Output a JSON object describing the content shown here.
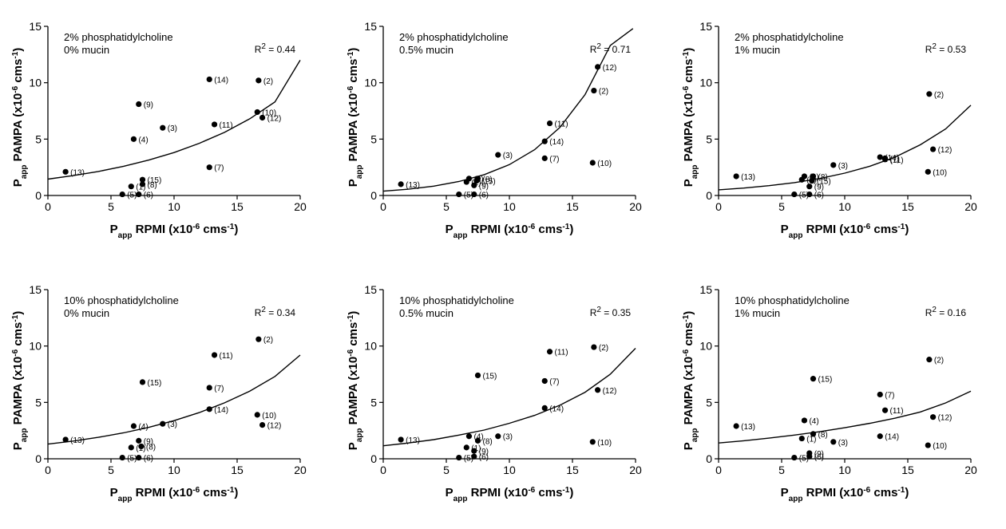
{
  "x_axis_label": {
    "main": "P",
    "sub": "app",
    "rest": " RPMI (x10",
    "exp": "-6",
    "unit": " cms",
    "unit_exp": "-1",
    "close": ")"
  },
  "y_axis_label": {
    "main": "P",
    "sub": "app",
    "rest": " PAMPA (x10",
    "exp": "-6",
    "unit": " cms",
    "unit_exp": "-1",
    "close": ")"
  },
  "r2_prefix": "R",
  "r2_exp": "2",
  "chart_data": [
    {
      "type": "scatter",
      "annotation_lines": [
        "2% phosphatidylcholine",
        "0% mucin"
      ],
      "r2_value": " = 0.44",
      "xlim": [
        0,
        20
      ],
      "ylim": [
        0,
        15
      ],
      "x_ticks": [
        "0",
        "5",
        "10",
        "15",
        "20"
      ],
      "y_ticks": [
        "0",
        "5",
        "10",
        "15"
      ],
      "points": [
        {
          "label": "(13)",
          "x": 1.4,
          "y": 2.1
        },
        {
          "label": "(5)",
          "x": 5.9,
          "y": 0.1
        },
        {
          "label": "(1)",
          "x": 6.6,
          "y": 0.8
        },
        {
          "label": "(6)",
          "x": 7.2,
          "y": 0.1
        },
        {
          "label": "(4)",
          "x": 6.8,
          "y": 5.0
        },
        {
          "label": "(9)",
          "x": 7.2,
          "y": 8.1
        },
        {
          "label": "(15)",
          "x": 7.5,
          "y": 1.4
        },
        {
          "label": "(8)",
          "x": 7.5,
          "y": 1.0
        },
        {
          "label": "(3)",
          "x": 9.1,
          "y": 6.0
        },
        {
          "label": "(14)",
          "x": 12.8,
          "y": 10.3
        },
        {
          "label": "(7)",
          "x": 12.8,
          "y": 2.5
        },
        {
          "label": "(11)",
          "x": 13.2,
          "y": 6.3
        },
        {
          "label": "(2)",
          "x": 16.7,
          "y": 10.2
        },
        {
          "label": "(10)",
          "x": 16.6,
          "y": 7.4
        },
        {
          "label": "(12)",
          "x": 17.0,
          "y": 6.9
        }
      ],
      "curve_x": [
        0,
        2,
        4,
        6,
        8,
        10,
        12,
        14,
        16,
        18,
        20
      ],
      "curve_y": [
        1.45,
        1.76,
        2.13,
        2.59,
        3.14,
        3.81,
        4.63,
        5.6,
        6.8,
        8.3,
        12.0
      ]
    },
    {
      "type": "scatter",
      "annotation_lines": [
        "2% phosphatidylcholine",
        "0.5% mucin"
      ],
      "r2_value": " = 0.71",
      "xlim": [
        0,
        20
      ],
      "ylim": [
        0,
        15
      ],
      "x_ticks": [
        "0",
        "5",
        "10",
        "15",
        "20"
      ],
      "y_ticks": [
        "0",
        "5",
        "10",
        "15"
      ],
      "points": [
        {
          "label": "(13)",
          "x": 1.4,
          "y": 1.0
        },
        {
          "label": "(5)",
          "x": 6.0,
          "y": 0.1
        },
        {
          "label": "(1)",
          "x": 6.6,
          "y": 1.2
        },
        {
          "label": "(4)",
          "x": 6.8,
          "y": 1.5
        },
        {
          "label": "(6)",
          "x": 7.2,
          "y": 0.1
        },
        {
          "label": "(9)",
          "x": 7.2,
          "y": 0.9
        },
        {
          "label": "(15)",
          "x": 7.4,
          "y": 1.3
        },
        {
          "label": "(8)",
          "x": 7.5,
          "y": 1.5
        },
        {
          "label": "(3)",
          "x": 9.1,
          "y": 3.6
        },
        {
          "label": "(14)",
          "x": 12.8,
          "y": 4.8
        },
        {
          "label": "(7)",
          "x": 12.8,
          "y": 3.3
        },
        {
          "label": "(11)",
          "x": 13.2,
          "y": 6.4
        },
        {
          "label": "(2)",
          "x": 16.7,
          "y": 9.3
        },
        {
          "label": "(10)",
          "x": 16.6,
          "y": 2.9
        },
        {
          "label": "(12)",
          "x": 17.0,
          "y": 11.4
        }
      ],
      "curve_x": [
        0,
        2,
        4,
        6,
        8,
        10,
        12,
        14,
        16,
        18,
        19.8
      ],
      "curve_y": [
        0.38,
        0.56,
        0.83,
        1.24,
        1.85,
        2.74,
        4.06,
        6.03,
        8.95,
        13.3,
        14.8
      ]
    },
    {
      "type": "scatter",
      "annotation_lines": [
        "2% phosphatidylcholine",
        "1% mucin"
      ],
      "r2_value": " = 0.53",
      "xlim": [
        0,
        20
      ],
      "ylim": [
        0,
        15
      ],
      "x_ticks": [
        "0",
        "5",
        "10",
        "15",
        "20"
      ],
      "y_ticks": [
        "0",
        "5",
        "10",
        "15"
      ],
      "points": [
        {
          "label": "(13)",
          "x": 1.4,
          "y": 1.7
        },
        {
          "label": "(5)",
          "x": 6.0,
          "y": 0.1
        },
        {
          "label": "(1)",
          "x": 6.6,
          "y": 1.4
        },
        {
          "label": "(4)",
          "x": 6.8,
          "y": 1.7
        },
        {
          "label": "(9)",
          "x": 7.2,
          "y": 0.8
        },
        {
          "label": "(6)",
          "x": 7.2,
          "y": 0.1
        },
        {
          "label": "(15)",
          "x": 7.4,
          "y": 1.3
        },
        {
          "label": "(8)",
          "x": 7.5,
          "y": 1.7
        },
        {
          "label": "(3)",
          "x": 9.1,
          "y": 2.7
        },
        {
          "label": "(14)",
          "x": 12.8,
          "y": 3.4
        },
        {
          "label": "(7)",
          "x": 13.2,
          "y": 3.3
        },
        {
          "label": "(11)",
          "x": 13.2,
          "y": 3.2
        },
        {
          "label": "(2)",
          "x": 16.7,
          "y": 9.0
        },
        {
          "label": "(12)",
          "x": 17.0,
          "y": 4.1
        },
        {
          "label": "(10)",
          "x": 16.6,
          "y": 2.1
        }
      ],
      "curve_x": [
        0,
        2,
        4,
        6,
        8,
        10,
        12,
        14,
        16,
        18,
        20
      ],
      "curve_y": [
        0.5,
        0.66,
        0.87,
        1.14,
        1.5,
        1.98,
        2.6,
        3.4,
        4.5,
        5.9,
        8.0
      ]
    },
    {
      "type": "scatter",
      "annotation_lines": [
        "10% phosphatidylcholine",
        "0% mucin"
      ],
      "r2_value": " = 0.34",
      "xlim": [
        0,
        20
      ],
      "ylim": [
        0,
        15
      ],
      "x_ticks": [
        "0",
        "5",
        "10",
        "15",
        "20"
      ],
      "y_ticks": [
        "0",
        "5",
        "10",
        "15"
      ],
      "points": [
        {
          "label": "(13)",
          "x": 1.4,
          "y": 1.7
        },
        {
          "label": "(5)",
          "x": 5.9,
          "y": 0.1
        },
        {
          "label": "(1)",
          "x": 6.6,
          "y": 1.0
        },
        {
          "label": "(4)",
          "x": 6.8,
          "y": 2.9
        },
        {
          "label": "(9)",
          "x": 7.2,
          "y": 1.6
        },
        {
          "label": "(6)",
          "x": 7.2,
          "y": 0.1
        },
        {
          "label": "(8)",
          "x": 7.4,
          "y": 1.1
        },
        {
          "label": "(15)",
          "x": 7.5,
          "y": 6.8
        },
        {
          "label": "(3)",
          "x": 9.1,
          "y": 3.1
        },
        {
          "label": "(14)",
          "x": 12.8,
          "y": 4.4
        },
        {
          "label": "(7)",
          "x": 12.8,
          "y": 6.3
        },
        {
          "label": "(11)",
          "x": 13.2,
          "y": 9.2
        },
        {
          "label": "(2)",
          "x": 16.7,
          "y": 10.6
        },
        {
          "label": "(10)",
          "x": 16.6,
          "y": 3.9
        },
        {
          "label": "(12)",
          "x": 17.0,
          "y": 3.0
        }
      ],
      "curve_x": [
        0,
        2,
        4,
        6,
        8,
        10,
        12,
        14,
        16,
        18,
        20
      ],
      "curve_y": [
        1.3,
        1.57,
        1.9,
        2.3,
        2.79,
        3.38,
        4.1,
        4.96,
        6.0,
        7.3,
        9.2
      ]
    },
    {
      "type": "scatter",
      "annotation_lines": [
        "10% phosphatidylcholine",
        "0.5% mucin"
      ],
      "r2_value": " = 0.35",
      "xlim": [
        0,
        20
      ],
      "ylim": [
        0,
        15
      ],
      "x_ticks": [
        "0",
        "5",
        "10",
        "15",
        "20"
      ],
      "y_ticks": [
        "0",
        "5",
        "10",
        "15"
      ],
      "points": [
        {
          "label": "(13)",
          "x": 1.4,
          "y": 1.7
        },
        {
          "label": "(5)",
          "x": 6.0,
          "y": 0.1
        },
        {
          "label": "(1)",
          "x": 6.6,
          "y": 1.0
        },
        {
          "label": "(4)",
          "x": 6.8,
          "y": 2.0
        },
        {
          "label": "(9)",
          "x": 7.2,
          "y": 0.7
        },
        {
          "label": "(6)",
          "x": 7.2,
          "y": 0.2
        },
        {
          "label": "(8)",
          "x": 7.5,
          "y": 1.6
        },
        {
          "label": "(15)",
          "x": 7.5,
          "y": 7.4
        },
        {
          "label": "(3)",
          "x": 9.1,
          "y": 2.0
        },
        {
          "label": "(14)",
          "x": 12.8,
          "y": 4.5
        },
        {
          "label": "(7)",
          "x": 12.8,
          "y": 6.9
        },
        {
          "label": "(11)",
          "x": 13.2,
          "y": 9.5
        },
        {
          "label": "(2)",
          "x": 16.7,
          "y": 9.9
        },
        {
          "label": "(12)",
          "x": 17.0,
          "y": 6.1
        },
        {
          "label": "(10)",
          "x": 16.6,
          "y": 1.5
        }
      ],
      "curve_x": [
        0,
        2,
        4,
        6,
        8,
        10,
        12,
        14,
        16,
        18,
        20
      ],
      "curve_y": [
        1.15,
        1.4,
        1.7,
        2.1,
        2.55,
        3.15,
        3.85,
        4.75,
        5.9,
        7.5,
        9.8
      ]
    },
    {
      "type": "scatter",
      "annotation_lines": [
        "10% phosphatidylcholine",
        "1% mucin"
      ],
      "r2_value": " = 0.16",
      "xlim": [
        0,
        20
      ],
      "ylim": [
        0,
        15
      ],
      "x_ticks": [
        "0",
        "5",
        "10",
        "15",
        "20"
      ],
      "y_ticks": [
        "0",
        "5",
        "10",
        "15"
      ],
      "points": [
        {
          "label": "(13)",
          "x": 1.4,
          "y": 2.9
        },
        {
          "label": "(5)",
          "x": 6.0,
          "y": 0.1
        },
        {
          "label": "(1)",
          "x": 6.6,
          "y": 1.8
        },
        {
          "label": "(4)",
          "x": 6.8,
          "y": 3.4
        },
        {
          "label": "(9)",
          "x": 7.2,
          "y": 0.5
        },
        {
          "label": "(6)",
          "x": 7.2,
          "y": 0.2
        },
        {
          "label": "(8)",
          "x": 7.5,
          "y": 2.2
        },
        {
          "label": "(15)",
          "x": 7.5,
          "y": 7.1
        },
        {
          "label": "(3)",
          "x": 9.1,
          "y": 1.5
        },
        {
          "label": "(14)",
          "x": 12.8,
          "y": 2.0
        },
        {
          "label": "(7)",
          "x": 12.8,
          "y": 5.7
        },
        {
          "label": "(11)",
          "x": 13.2,
          "y": 4.3
        },
        {
          "label": "(2)",
          "x": 16.7,
          "y": 8.8
        },
        {
          "label": "(12)",
          "x": 17.0,
          "y": 3.7
        },
        {
          "label": "(10)",
          "x": 16.6,
          "y": 1.2
        }
      ],
      "curve_x": [
        0,
        2,
        4,
        6,
        8,
        10,
        12,
        14,
        16,
        18,
        20
      ],
      "curve_y": [
        1.4,
        1.6,
        1.83,
        2.1,
        2.4,
        2.75,
        3.15,
        3.6,
        4.15,
        4.95,
        6.0
      ]
    }
  ]
}
